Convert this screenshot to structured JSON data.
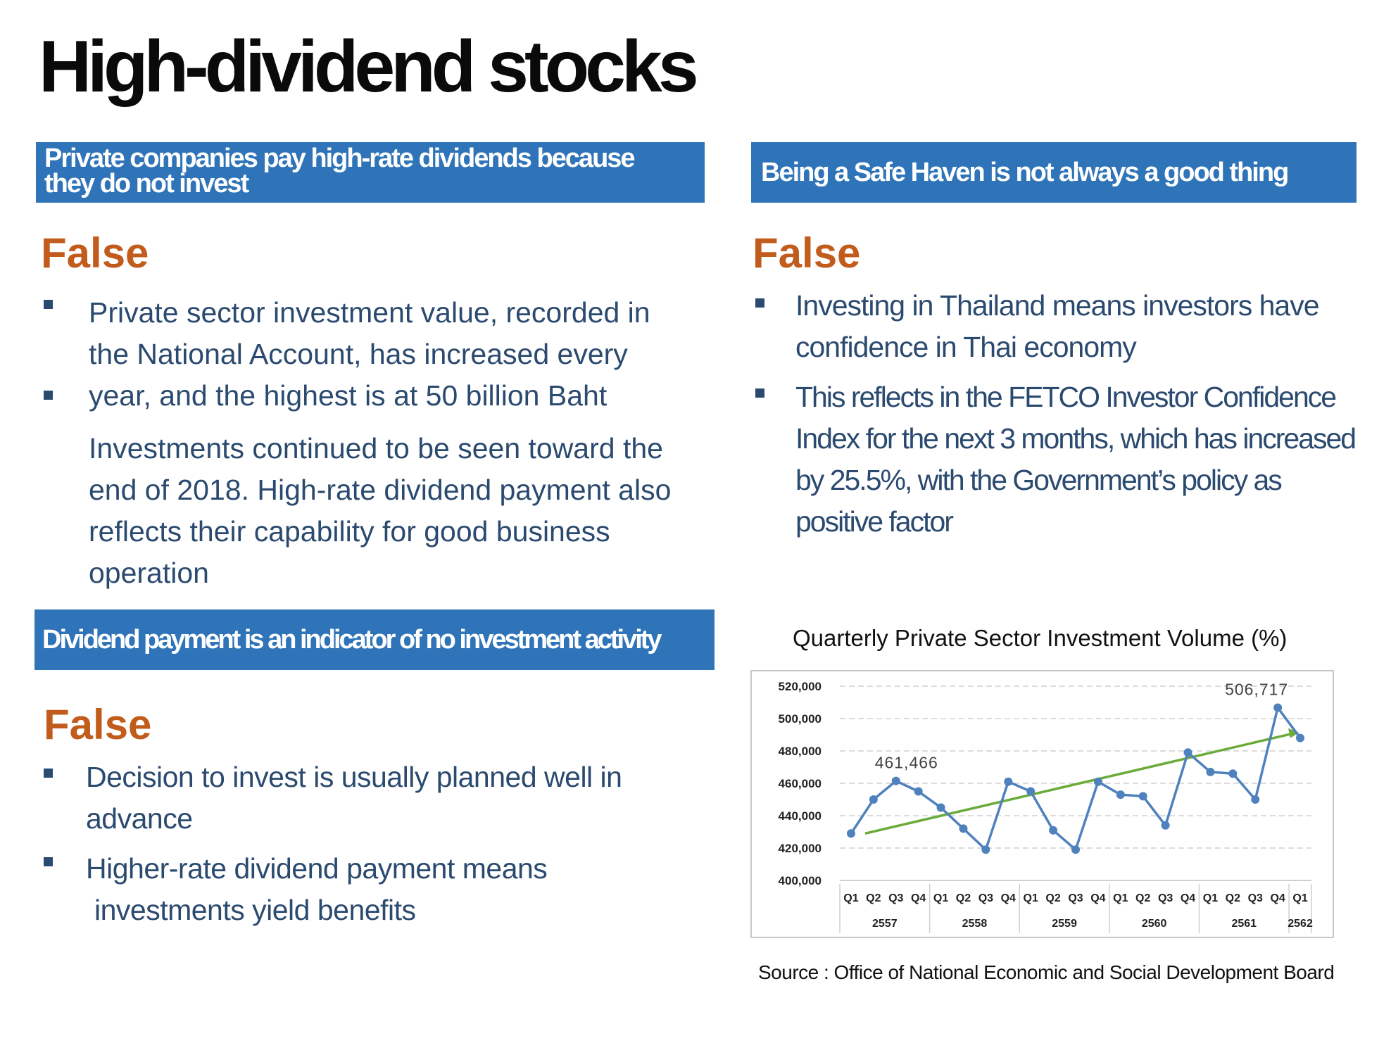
{
  "title": "High-dividend stocks",
  "sections": {
    "s1": {
      "heading_line1": "Private companies pay high-rate dividends because",
      "heading_line2": "they do not invest",
      "verdict": "False",
      "lines": [
        "Private sector investment value, recorded in",
        "the National Account, has increased every",
        "year, and the highest is at 50 billion Baht",
        "Investments continued to be seen toward the",
        "end of 2018. High-rate dividend payment also",
        "reflects their capability for good business",
        "operation"
      ]
    },
    "s2": {
      "heading": "Being a Safe Haven is not always a good thing",
      "verdict": "False",
      "lines": [
        "Investing in Thailand means investors have",
        "confidence in Thai economy",
        "This reflects in the FETCO Investor Confidence",
        "Index for the next 3 months, which has increased",
        "by 25.5%, with the Government’s policy as",
        "positive factor"
      ]
    },
    "s3": {
      "heading": "Dividend payment is an indicator of no investment activity",
      "verdict": "False",
      "lines": [
        "Decision to invest is usually planned well in",
        "advance",
        "Higher-rate dividend payment means",
        "investments yield benefits"
      ]
    }
  },
  "chart_title": "Quarterly Private Sector Investment Volume (%)",
  "source": "Source : Office of National Economic and Social Development Board",
  "colors": {
    "banner": "#2f74b8",
    "verdict": "#c25c1c",
    "body_text": "#2b4a6f",
    "series_line": "#4f81bd",
    "trend_line": "#6aab3a"
  },
  "chart_data": {
    "type": "line",
    "title": "Quarterly Private Sector Investment Volume (%)",
    "x": [
      "Q1",
      "Q2",
      "Q3",
      "Q4",
      "Q1",
      "Q2",
      "Q3",
      "Q4",
      "Q1",
      "Q2",
      "Q3",
      "Q4",
      "Q1",
      "Q2",
      "Q3",
      "Q4",
      "Q1",
      "Q2",
      "Q3",
      "Q4",
      "Q1"
    ],
    "groups": [
      {
        "label": "2557",
        "count": 4
      },
      {
        "label": "2558",
        "count": 4
      },
      {
        "label": "2559",
        "count": 4
      },
      {
        "label": "2560",
        "count": 4
      },
      {
        "label": "2561",
        "count": 4
      },
      {
        "label": "2562",
        "count": 1
      }
    ],
    "series": [
      {
        "values": [
          429000,
          450000,
          461466,
          455000,
          445000,
          432000,
          419000,
          461000,
          455000,
          431000,
          419000,
          461000,
          453000,
          452000,
          434000,
          479000,
          467000,
          466000,
          450000,
          506717,
          488000
        ]
      }
    ],
    "trend": [
      429000,
      491000
    ],
    "annotations": [
      {
        "index": 2,
        "text": "461,466"
      },
      {
        "index": 19,
        "text": "506,717"
      }
    ],
    "ylim": [
      400000,
      520000
    ],
    "yticks": [
      "400,000",
      "420,000",
      "440,000",
      "460,000",
      "480,000",
      "500,000",
      "520,000"
    ],
    "grid": true,
    "legend": "none"
  }
}
